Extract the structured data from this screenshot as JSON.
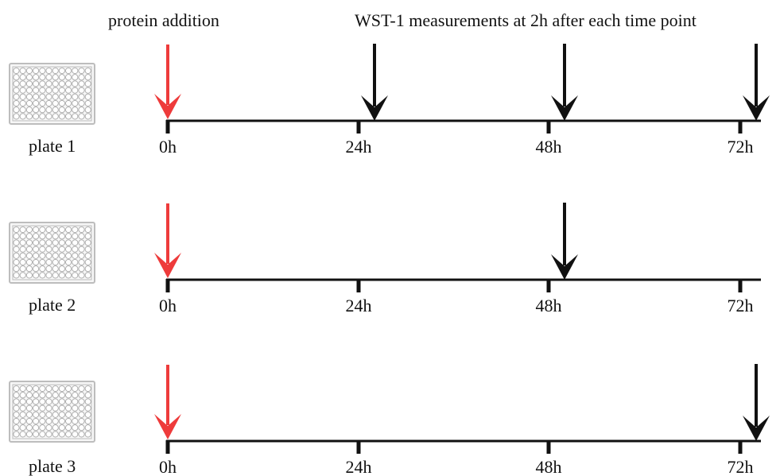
{
  "header": {
    "protein_label": "protein addition",
    "measure_label": "WST-1 measurements at 2h after each time point"
  },
  "colors": {
    "protein_arrow": "#ee3b3b",
    "measure_arrow": "#111111",
    "timeline": "#111111",
    "plate_border": "#bdbdbd",
    "plate_fill": "#f7f7f7",
    "well_stroke": "#a9a9a9"
  },
  "icons": {
    "plate": "96-well-plate-icon"
  },
  "time_points": [
    "0h",
    "24h",
    "48h",
    "72h"
  ],
  "plates": [
    {
      "label": "plate 1",
      "measurements": [
        "24h",
        "48h",
        "72h"
      ]
    },
    {
      "label": "plate 2",
      "measurements": [
        "48h"
      ]
    },
    {
      "label": "plate 3",
      "measurements": [
        "72h"
      ]
    }
  ]
}
